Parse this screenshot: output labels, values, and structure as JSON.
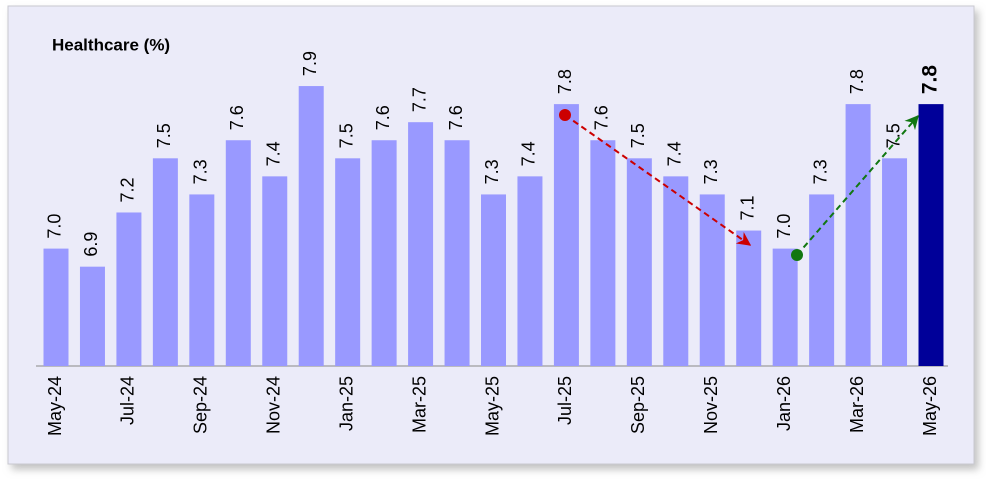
{
  "chart_data": {
    "type": "bar",
    "title": "Healthcare (%)",
    "categories": [
      "May-24",
      null,
      "Jul-24",
      null,
      "Sep-24",
      null,
      "Nov-24",
      null,
      "Jan-25",
      null,
      "Mar-25",
      null,
      "May-25",
      null,
      "Jul-25",
      null,
      "Sep-25",
      null,
      "Nov-25",
      null,
      "Jan-26",
      null,
      "Mar-26",
      null,
      "May-26"
    ],
    "values": [
      7.0,
      6.9,
      7.2,
      7.5,
      7.3,
      7.6,
      7.4,
      7.9,
      7.5,
      7.6,
      7.7,
      7.6,
      7.3,
      7.4,
      7.8,
      7.6,
      7.5,
      7.4,
      7.3,
      7.1,
      7.0,
      7.3,
      7.8,
      7.5,
      7.8
    ],
    "value_labels": [
      "7.0",
      "6.9",
      "7.2",
      "7.5",
      "7.3",
      "7.6",
      "7.4",
      "7.9",
      "7.5",
      "7.6",
      "7.7",
      "7.6",
      "7.3",
      "7.4",
      "7.8",
      "7.6",
      "7.5",
      "7.4",
      "7.3",
      "7.1",
      "7.0",
      "7.3",
      "7.8",
      "7.5",
      "7.8"
    ],
    "color": "#9999ff",
    "highlight_color": "#000099",
    "ylim": [
      6.35,
      8.0
    ]
  }
}
